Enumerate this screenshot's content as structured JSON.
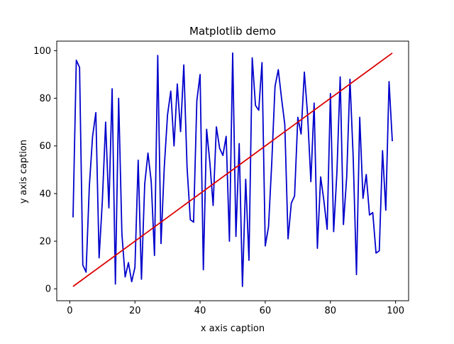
{
  "chart_data": {
    "type": "line",
    "title": "Matplotlib demo",
    "xlabel": "x axis caption",
    "ylabel": "y axis caption",
    "xlim": [
      -4,
      104
    ],
    "ylim": [
      -5,
      104
    ],
    "xticks": [
      0,
      20,
      40,
      60,
      80,
      100
    ],
    "yticks": [
      0,
      20,
      40,
      60,
      80,
      100
    ],
    "grid": false,
    "series": [
      {
        "color": "#0000cc",
        "x": [
          1,
          2,
          3,
          4,
          5,
          6,
          7,
          8,
          9,
          10,
          11,
          12,
          13,
          14,
          15,
          16,
          17,
          18,
          19,
          20,
          21,
          22,
          23,
          24,
          25,
          26,
          27,
          28,
          29,
          30,
          31,
          32,
          33,
          34,
          35,
          36,
          37,
          38,
          39,
          40,
          41,
          42,
          43,
          44,
          45,
          46,
          47,
          48,
          49,
          50,
          51,
          52,
          53,
          54,
          55,
          56,
          57,
          58,
          59,
          60,
          61,
          62,
          63,
          64,
          65,
          66,
          67,
          68,
          69,
          70,
          71,
          72,
          73,
          74,
          75,
          76,
          77,
          78,
          79,
          80,
          81,
          82,
          83,
          84,
          85,
          86,
          87,
          88,
          89,
          90,
          91,
          92,
          93,
          94,
          95,
          96,
          97,
          98,
          99
        ],
        "y": [
          30,
          96,
          93,
          10,
          7,
          43,
          64,
          74,
          13,
          37,
          70,
          34,
          84,
          2,
          80,
          23,
          5,
          11,
          3,
          9,
          54,
          4,
          44,
          57,
          45,
          14,
          98,
          19,
          51,
          73,
          83,
          60,
          86,
          66,
          94,
          51,
          29,
          28,
          79,
          90,
          8,
          67,
          53,
          35,
          68,
          59,
          56,
          64,
          20,
          99,
          22,
          61,
          1,
          46,
          12,
          97,
          77,
          75,
          95,
          18,
          26,
          53,
          85,
          92,
          80,
          69,
          21,
          36,
          39,
          72,
          65,
          91,
          73,
          45,
          78,
          17,
          47,
          37,
          25,
          82,
          24,
          49,
          89,
          27,
          47,
          88,
          55,
          6,
          72,
          38,
          48,
          31,
          32,
          15,
          16,
          58,
          33,
          87,
          62
        ]
      },
      {
        "color": "#dd0000",
        "x": [
          1,
          99
        ],
        "y": [
          1,
          99
        ]
      }
    ]
  }
}
